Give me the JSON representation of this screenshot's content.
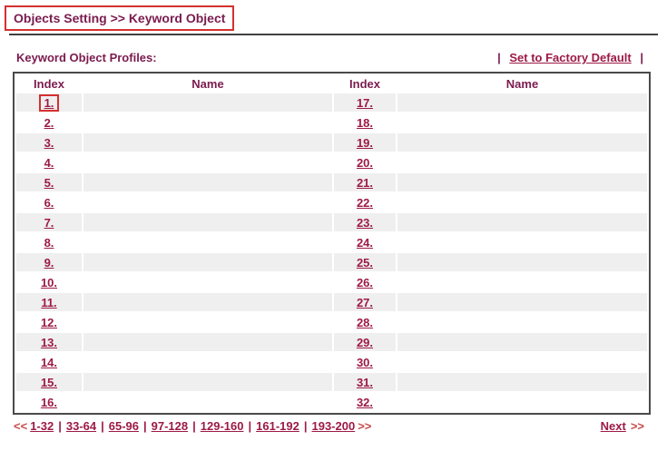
{
  "page": {
    "title": "Objects Setting >> Keyword Object",
    "section_label": "Keyword Object Profiles:",
    "factory_default": {
      "pipe": "|",
      "label": "Set to Factory Default"
    }
  },
  "table": {
    "headers": [
      "Index",
      "Name",
      "Index",
      "Name"
    ],
    "rows": [
      {
        "left_index": "1.",
        "left_name": "",
        "right_index": "17.",
        "right_name": "",
        "annotated": true
      },
      {
        "left_index": "2.",
        "left_name": "",
        "right_index": "18.",
        "right_name": ""
      },
      {
        "left_index": "3.",
        "left_name": "",
        "right_index": "19.",
        "right_name": ""
      },
      {
        "left_index": "4.",
        "left_name": "",
        "right_index": "20.",
        "right_name": ""
      },
      {
        "left_index": "5.",
        "left_name": "",
        "right_index": "21.",
        "right_name": ""
      },
      {
        "left_index": "6.",
        "left_name": "",
        "right_index": "22.",
        "right_name": ""
      },
      {
        "left_index": "7.",
        "left_name": "",
        "right_index": "23.",
        "right_name": ""
      },
      {
        "left_index": "8.",
        "left_name": "",
        "right_index": "24.",
        "right_name": ""
      },
      {
        "left_index": "9.",
        "left_name": "",
        "right_index": "25.",
        "right_name": ""
      },
      {
        "left_index": "10.",
        "left_name": "",
        "right_index": "26.",
        "right_name": ""
      },
      {
        "left_index": "11.",
        "left_name": "",
        "right_index": "27.",
        "right_name": ""
      },
      {
        "left_index": "12.",
        "left_name": "",
        "right_index": "28.",
        "right_name": ""
      },
      {
        "left_index": "13.",
        "left_name": "",
        "right_index": "29.",
        "right_name": ""
      },
      {
        "left_index": "14.",
        "left_name": "",
        "right_index": "30.",
        "right_name": ""
      },
      {
        "left_index": "15.",
        "left_name": "",
        "right_index": "31.",
        "right_name": ""
      },
      {
        "left_index": "16.",
        "left_name": "",
        "right_index": "32.",
        "right_name": ""
      }
    ]
  },
  "pagination": {
    "prev_arrow": "<<",
    "ranges": [
      "1-32",
      "33-64",
      "65-96",
      "97-128",
      "129-160",
      "161-192",
      "193-200"
    ],
    "trailing_arrow": ">>",
    "separator": "|",
    "next_label": "Next",
    "next_arrow": ">>"
  },
  "colors": {
    "heading": "#7b1b4e",
    "link": "#9c1a45",
    "arrow": "#c84b4b",
    "annotation": "#d53030",
    "table-border": "#4a4a4a",
    "stripe": "#efefef",
    "rule": "#404040"
  }
}
